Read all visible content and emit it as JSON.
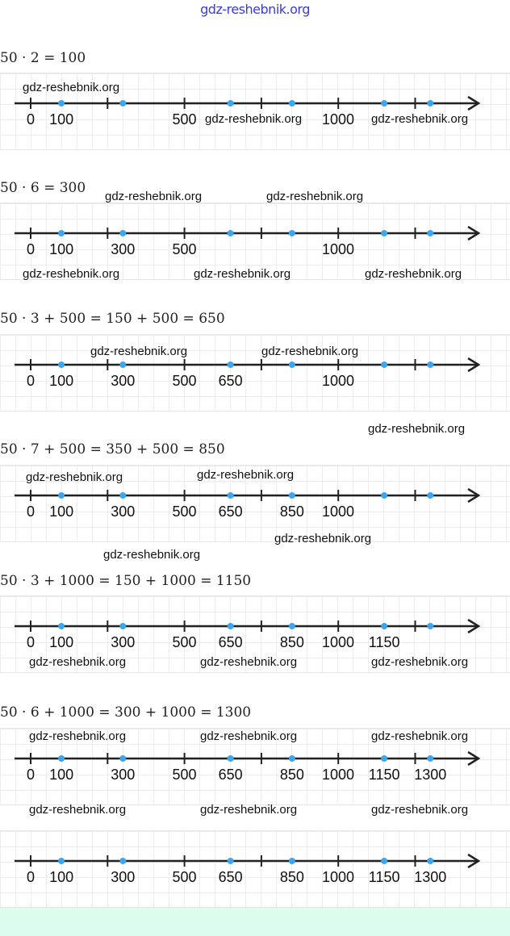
{
  "watermark": "gdz-reshebnik.org",
  "header": {
    "site": "gdz-reshebnik.org"
  },
  "sections": [
    {
      "equation": "50 · 2 = 100",
      "labels": [
        0,
        100,
        500,
        1000
      ]
    },
    {
      "equation": "50 · 6 = 300",
      "labels": [
        0,
        100,
        300,
        500,
        1000
      ]
    },
    {
      "equation": "50 · 3 + 500 = 150 + 500 = 650",
      "labels": [
        0,
        100,
        300,
        500,
        650,
        1000
      ]
    },
    {
      "equation": "50 · 7 + 500 = 350 + 500 = 850",
      "labels": [
        0,
        100,
        300,
        500,
        650,
        850,
        1000
      ]
    },
    {
      "equation": "50 · 3 + 1000 = 150 + 1000 = 1150",
      "labels": [
        0,
        100,
        300,
        500,
        650,
        850,
        1000,
        1150
      ]
    },
    {
      "equation": "50 · 6 + 1000 = 300 + 1000 = 1300",
      "labels": [
        0,
        100,
        300,
        500,
        650,
        850,
        1000,
        1150,
        1300
      ]
    },
    {
      "equation": "",
      "labels": [
        0,
        100,
        300,
        500,
        650,
        850,
        1000,
        1150,
        1300
      ]
    }
  ],
  "number_line": {
    "ticks": [
      0,
      200,
      400,
      600,
      800,
      1000
    ],
    "points": [
      100,
      300,
      650,
      850,
      1150,
      1300
    ],
    "axis_color": "#222222",
    "point_color": "#3ea6ee"
  }
}
